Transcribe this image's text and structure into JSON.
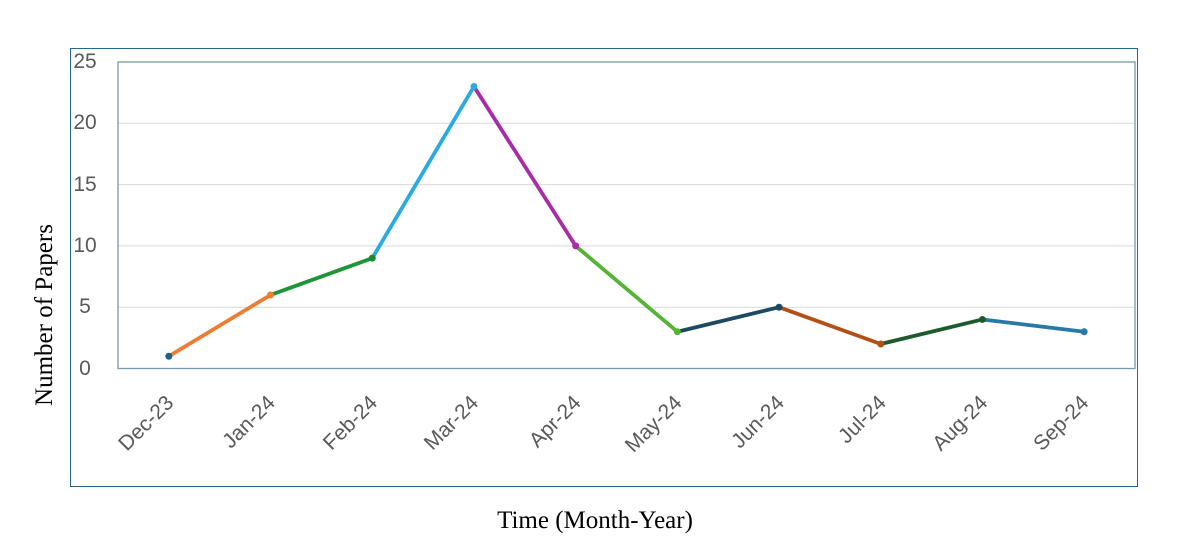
{
  "chart_data": {
    "type": "line",
    "title": "",
    "xlabel": "Time (Month-Year)",
    "ylabel": "Number of Papers",
    "categories": [
      "Dec-23",
      "Jan-24",
      "Feb-24",
      "Mar-24",
      "Apr-24",
      "May-24",
      "Jun-24",
      "Jul-24",
      "Aug-24",
      "Sep-24"
    ],
    "values": [
      1,
      6,
      9,
      23,
      10,
      3,
      5,
      2,
      4,
      3
    ],
    "ylim": [
      0,
      25
    ],
    "yticks": [
      0,
      5,
      10,
      15,
      20,
      25
    ],
    "grid": "horizontal",
    "legend_position": "none",
    "x_tick_rotation_deg": 45,
    "segment_colors": [
      "#ED7D31",
      "#1E9638",
      "#29ABE2",
      "#A82BA8",
      "#55B435",
      "#1C4A60",
      "#B35016",
      "#1D5B2E",
      "#2878A8"
    ],
    "point_colors": [
      "#1E5F85",
      "#ED7D31",
      "#1B8A33",
      "#29ABE2",
      "#A82BA8",
      "#55B435",
      "#1C4A60",
      "#B35016",
      "#1D5B2E",
      "#2878A8"
    ]
  },
  "styles": {
    "frame_border_color": "#27658C",
    "plot_border_color": "#7799AE",
    "gridline_color": "#D9D9D9",
    "tick_label_color": "#595959",
    "axis_title_color": "#000000",
    "background_color": "#FFFFFF"
  }
}
